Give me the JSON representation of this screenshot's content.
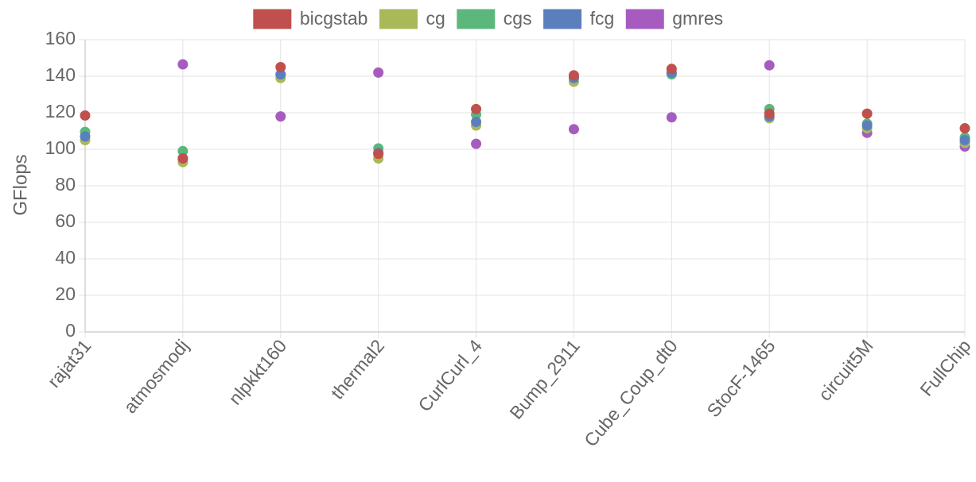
{
  "chart_data": {
    "type": "scatter",
    "title": "",
    "xlabel": "",
    "ylabel": "GFlops",
    "ylim": [
      0,
      160
    ],
    "yticks": [
      0,
      20,
      40,
      60,
      80,
      100,
      120,
      140,
      160
    ],
    "grid": true,
    "legend_position": "top-center",
    "categories": [
      "rajat31",
      "atmosmodj",
      "nlpkkt160",
      "thermal2",
      "CurlCurl_4",
      "Bump_2911",
      "Cube_Coup_dt0",
      "StocF-1465",
      "circuit5M",
      "FullChip"
    ],
    "series": [
      {
        "name": "bicgstab",
        "color": "#c0504d",
        "values": [
          118.5,
          95,
          145,
          97.5,
          122,
          140.5,
          144,
          119.5,
          119.5,
          111.5
        ]
      },
      {
        "name": "cg",
        "color": "#a9b95a",
        "values": [
          105,
          93,
          139,
          95,
          113,
          137,
          141.5,
          117,
          111.5,
          103.5
        ]
      },
      {
        "name": "cgs",
        "color": "#5cb77d",
        "values": [
          109.5,
          99,
          141,
          100.5,
          119,
          139.5,
          141,
          122,
          114,
          106.5
        ]
      },
      {
        "name": "fcg",
        "color": "#5b7fbd",
        "values": [
          107,
          95,
          141,
          98,
          115,
          139,
          142,
          118,
          113,
          105
        ]
      },
      {
        "name": "gmres",
        "color": "#a65cbf",
        "values": [
          null,
          146.5,
          118,
          142,
          103,
          111,
          117.5,
          146,
          109,
          101.5
        ]
      }
    ]
  }
}
